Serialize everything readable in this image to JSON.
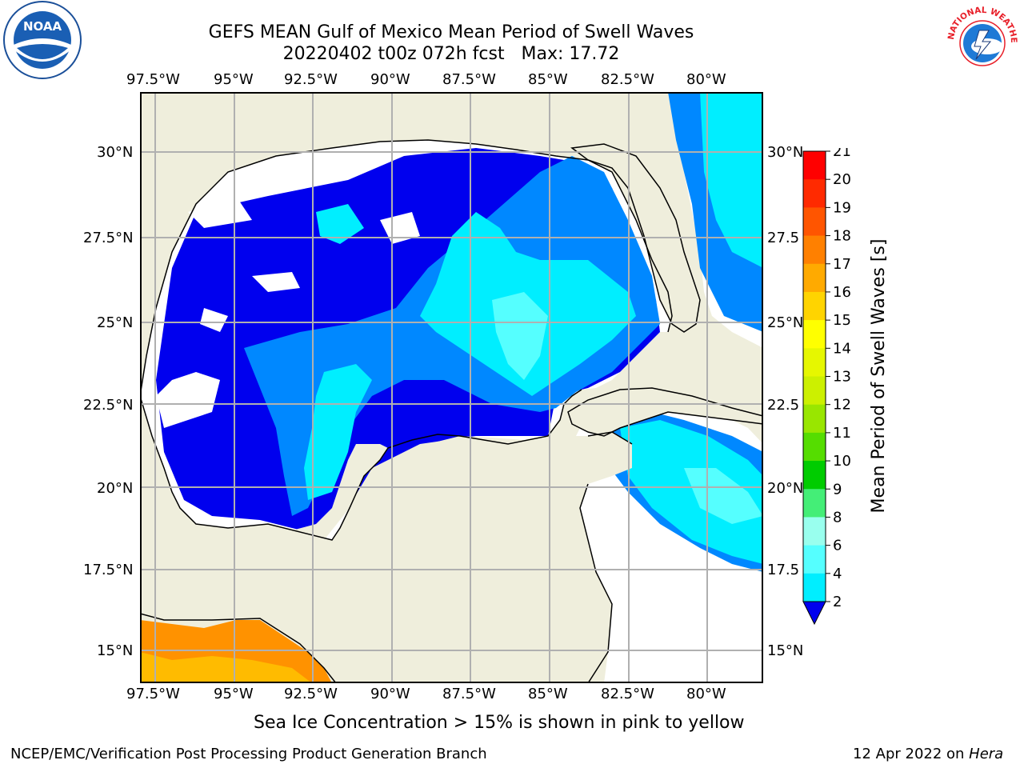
{
  "title_line1": "GEFS MEAN Gulf of Mexico Mean Period of Swell Waves",
  "title_line2": "20220402 t00z 072h fcst   Max: 17.72",
  "logos": {
    "left": "NOAA",
    "right": "NATIONAL WEATHER SERVICE"
  },
  "map": {
    "lon_labels": [
      "97.5°W",
      "95°W",
      "92.5°W",
      "90°W",
      "87.5°W",
      "85°W",
      "82.5°W",
      "80°W"
    ],
    "lat_labels_left": [
      "30°N",
      "27.5°N",
      "25°N",
      "22.5°N",
      "20°N",
      "17.5°N",
      "15°N"
    ],
    "lat_labels_right": [
      "30°N",
      "27.5",
      "25°N",
      "22.5",
      "20°N",
      "17.5",
      "15°N"
    ],
    "colors": {
      "land": "#efeedc",
      "grid": "#b0b0b0",
      "coast": "#000000"
    }
  },
  "colorbar": {
    "label": "Mean Period of Swell Waves [s]",
    "ticks": [
      "21",
      "20",
      "19",
      "18",
      "17",
      "16",
      "15",
      "14",
      "13",
      "12",
      "11",
      "10",
      "9",
      "8",
      "6",
      "4",
      "2"
    ],
    "colors": [
      "#ff0000",
      "#ff2a00",
      "#ff5500",
      "#ff8000",
      "#ffaa00",
      "#ffd400",
      "#ffff00",
      "#e6f700",
      "#ccf000",
      "#99e600",
      "#55dd00",
      "#00cc00",
      "#44ee77",
      "#99ffee",
      "#55ffff",
      "#00eeff",
      "#0088ff"
    ],
    "extend_color": "#0000ee"
  },
  "caption": "Sea Ice Concentration > 15% is shown in pink to yellow",
  "footer_left": "NCEP/EMC/Verification Post Processing Product Generation Branch",
  "footer_right_date": "12 Apr 2022 on ",
  "footer_right_machine": "Hera"
}
